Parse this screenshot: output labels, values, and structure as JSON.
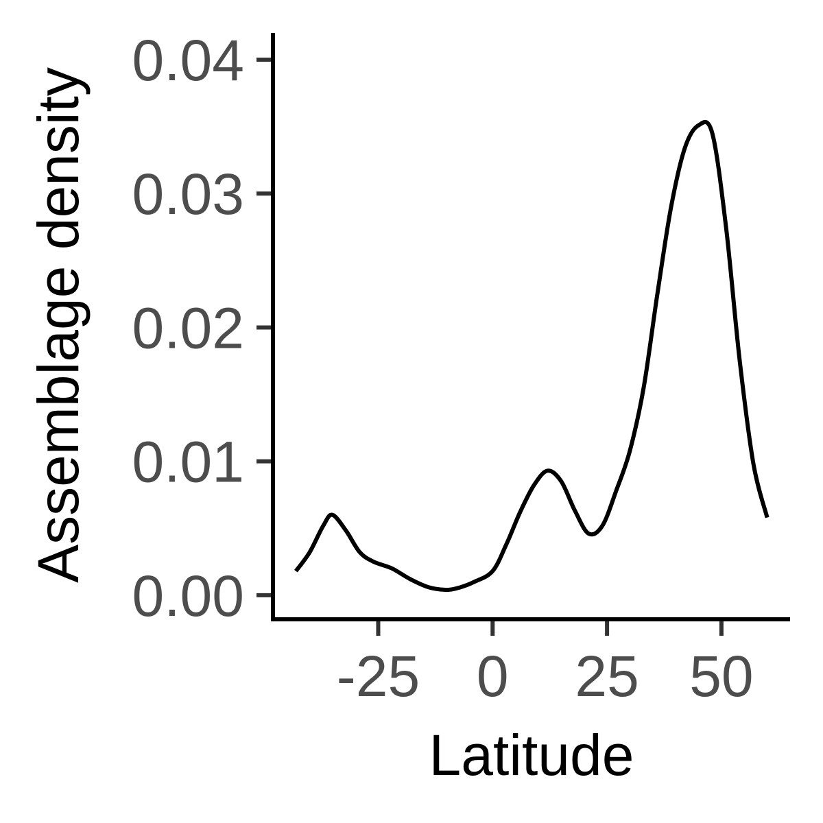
{
  "chart_data": {
    "type": "line",
    "title": "",
    "xlabel": "Latitude",
    "ylabel": "Assemblage density",
    "xlim": [
      -48,
      65
    ],
    "ylim": [
      -0.0018,
      0.042
    ],
    "x_ticks": [
      -25,
      0,
      25,
      50
    ],
    "x_tick_labels": [
      "-25",
      "0",
      "25",
      "50"
    ],
    "y_ticks": [
      0.0,
      0.01,
      0.02,
      0.03,
      0.04
    ],
    "y_tick_labels": [
      "0.00",
      "0.01",
      "0.02",
      "0.03",
      "0.04"
    ],
    "grid": false,
    "legend": "none",
    "line_color": "#000000",
    "series": [
      {
        "x": [
          -43,
          -40,
          -37,
          -35,
          -32,
          -29,
          -26,
          -22,
          -18,
          -14,
          -10,
          -7,
          -4,
          0,
          3,
          6,
          9,
          12,
          15,
          18,
          21,
          24,
          27,
          30,
          33,
          36,
          39,
          42,
          45,
          48,
          51,
          54,
          57,
          60
        ],
        "y": [
          0.0018,
          0.0032,
          0.0052,
          0.006,
          0.0048,
          0.0032,
          0.0025,
          0.002,
          0.0012,
          0.0006,
          0.0004,
          0.0006,
          0.001,
          0.0018,
          0.0038,
          0.0062,
          0.0082,
          0.0093,
          0.0085,
          0.0063,
          0.0046,
          0.0052,
          0.0078,
          0.0108,
          0.0155,
          0.0225,
          0.029,
          0.0334,
          0.0351,
          0.0345,
          0.0275,
          0.0175,
          0.0098,
          0.0058
        ]
      }
    ]
  }
}
